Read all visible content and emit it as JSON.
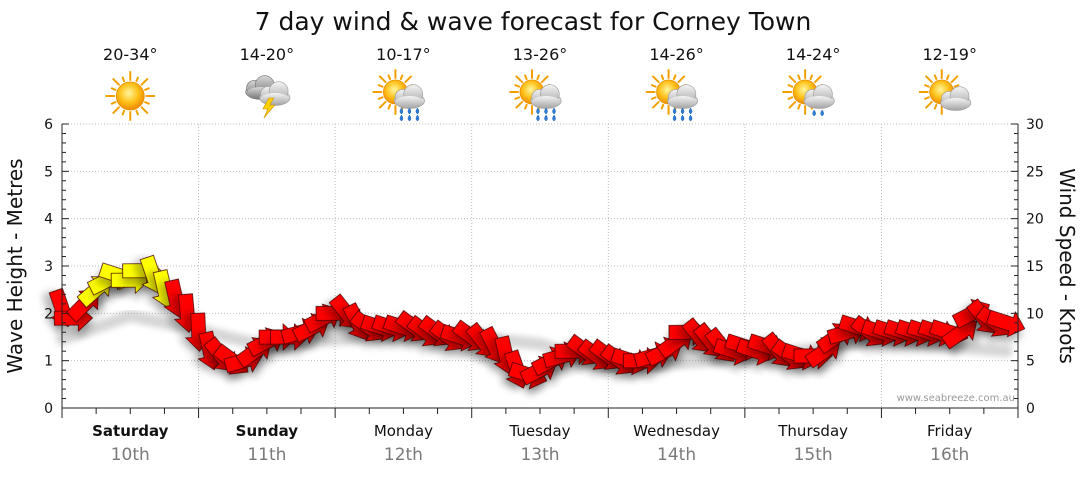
{
  "chart_data": {
    "type": "line",
    "title": "7 day wind & wave forecast for Corney Town",
    "ylabel": "Wave Height - Metres",
    "y2label": "Wind Speed - Knots",
    "ylim": [
      0,
      6
    ],
    "y2lim": [
      0,
      30
    ],
    "yticks": [
      "0",
      "1",
      "2",
      "3",
      "4",
      "5",
      "6"
    ],
    "y2ticks": [
      "0",
      "5",
      "10",
      "15",
      "20",
      "25",
      "30"
    ],
    "grid": true,
    "watermark": "www.seabreeze.com.au",
    "days": [
      {
        "name": "Saturday",
        "date": "10th",
        "temp": "20-34°",
        "icon": "sunny-icon",
        "bold": true
      },
      {
        "name": "Sunday",
        "date": "11th",
        "temp": "14-20°",
        "icon": "thunderstorm-icon",
        "bold": true
      },
      {
        "name": "Monday",
        "date": "12th",
        "temp": "10-17°",
        "icon": "sun-cloud-rain-icon",
        "bold": false
      },
      {
        "name": "Tuesday",
        "date": "13th",
        "temp": "13-26°",
        "icon": "sun-cloud-rain-icon",
        "bold": false
      },
      {
        "name": "Wednesday",
        "date": "14th",
        "temp": "14-26°",
        "icon": "sun-cloud-rain-icon",
        "bold": false
      },
      {
        "name": "Thursday",
        "date": "15th",
        "temp": "14-24°",
        "icon": "sun-cloud-light-rain-icon",
        "bold": false
      },
      {
        "name": "Friday",
        "date": "16th",
        "temp": "12-19°",
        "icon": "sun-cloud-icon",
        "bold": false
      }
    ],
    "wind_series": {
      "name": "Wind",
      "hours": [
        0,
        2,
        4,
        6,
        8,
        10,
        12,
        14,
        16,
        18,
        20,
        22,
        24,
        26,
        28,
        30,
        32,
        34,
        36,
        38,
        40,
        42,
        44,
        46,
        48,
        50,
        52,
        54,
        56,
        58,
        60,
        62,
        64,
        66,
        68,
        70,
        72,
        74,
        76,
        78,
        80,
        82,
        84,
        86,
        88,
        90,
        92,
        94,
        96,
        98,
        100,
        102,
        104,
        106,
        108,
        110,
        112,
        114,
        116,
        118,
        120,
        122,
        124,
        126,
        128,
        130,
        132,
        134,
        136,
        138,
        140,
        142,
        144,
        146,
        148,
        150,
        152,
        154,
        156,
        158,
        160,
        162,
        164,
        166
      ],
      "knots": [
        10.5,
        9.5,
        11,
        12.5,
        13.5,
        14,
        13.5,
        14.5,
        14,
        12.5,
        11.5,
        10,
        8,
        6,
        5.5,
        5,
        5,
        6,
        7,
        7.5,
        7.5,
        8,
        8.5,
        9.5,
        10,
        10,
        9,
        8.5,
        8.5,
        8.5,
        8.5,
        8.5,
        8,
        8,
        7.5,
        7.5,
        7.5,
        7,
        6.5,
        5.5,
        4,
        3.5,
        4,
        5,
        5.5,
        6,
        6,
        5.5,
        5.5,
        5,
        5,
        5,
        5.5,
        6,
        7,
        8,
        7.5,
        7,
        6.5,
        6,
        6.5,
        6,
        6.5,
        6,
        5.5,
        5.5,
        5.5,
        6,
        7.5,
        8,
        8.5,
        8,
        8,
        8,
        8,
        8,
        8,
        8,
        8,
        8,
        10,
        9.5,
        9,
        9
      ],
      "gust_hours": [
        6,
        8,
        10,
        12,
        14,
        16,
        18
      ]
    },
    "wave_series": {
      "name": "Wave",
      "hours": [
        0,
        12,
        24,
        36,
        48,
        60,
        72,
        84,
        96,
        108,
        120,
        132,
        144,
        156,
        166
      ],
      "metres": [
        1.45,
        1.95,
        1.65,
        1.3,
        1.45,
        1.55,
        1.5,
        1.35,
        0.85,
        0.95,
        1.05,
        1.25,
        1.45,
        1.3,
        1.2
      ]
    }
  }
}
